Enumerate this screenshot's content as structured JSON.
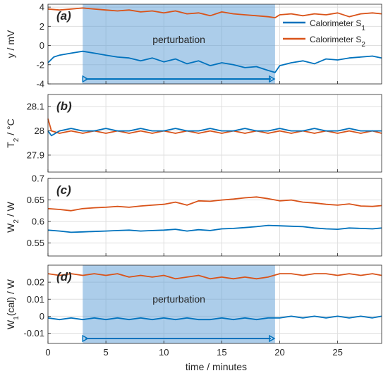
{
  "colors": {
    "s1": "#0072BD",
    "s2": "#D95319",
    "band": "#5A9BD5",
    "grid": "#DFDFDF",
    "axis": "#262626"
  },
  "chart_data": [
    {
      "type": "line",
      "panel_label": "(a)",
      "ylabel": "y / mV",
      "xlim": [
        0,
        28.8
      ],
      "ylim": [
        -4,
        4.3
      ],
      "yticks": [
        -4,
        -2,
        0,
        2,
        4
      ],
      "ytick_labels": [
        "-4",
        "-2",
        "0",
        "2",
        "4"
      ],
      "grid": true,
      "shaded_region": {
        "x": [
          3,
          19.6
        ],
        "label": "perturbation"
      },
      "legend": {
        "placement": "top-right",
        "entries": [
          {
            "base": "Calorimeter S",
            "sub": "1"
          },
          {
            "base": "Calorimeter S",
            "sub": "2"
          }
        ]
      },
      "series": [
        {
          "x": [
            0,
            1,
            2,
            3,
            4,
            5,
            6,
            7,
            8,
            9,
            10,
            11,
            12,
            13,
            14,
            15,
            16,
            17,
            18,
            19,
            19.6,
            20,
            21,
            22,
            23,
            24,
            25,
            26,
            27,
            28,
            28.8
          ],
          "values": [
            3.8,
            3.7,
            3.8,
            3.9,
            3.8,
            3.7,
            3.6,
            3.7,
            3.5,
            3.6,
            3.4,
            3.6,
            3.3,
            3.4,
            3.1,
            3.5,
            3.3,
            3.2,
            3.1,
            3.0,
            2.9,
            3.2,
            3.3,
            3.1,
            3.3,
            3.2,
            3.4,
            3.0,
            3.3,
            3.4,
            3.3
          ]
        },
        {
          "x": [
            0,
            0.5,
            1,
            2,
            3,
            4,
            5,
            6,
            7,
            8,
            9,
            10,
            11,
            12,
            13,
            14,
            15,
            16,
            17,
            18,
            19,
            19.6,
            20,
            21,
            22,
            23,
            24,
            25,
            26,
            27,
            28,
            28.8
          ],
          "values": [
            -1.8,
            -1.2,
            -1.0,
            -0.8,
            -0.6,
            -0.8,
            -1.0,
            -1.2,
            -1.3,
            -1.6,
            -1.3,
            -1.7,
            -1.4,
            -1.9,
            -1.6,
            -2.1,
            -1.8,
            -2.0,
            -2.3,
            -2.2,
            -2.6,
            -2.8,
            -2.1,
            -1.8,
            -1.6,
            -1.9,
            -1.4,
            -1.5,
            -1.3,
            -1.2,
            -1.1,
            -1.3
          ]
        }
      ]
    },
    {
      "type": "line",
      "panel_label": "(b)",
      "ylabel": {
        "base": "T",
        "sub": "2",
        "rest": " / °C"
      },
      "xlim": [
        0,
        28.8
      ],
      "ylim": [
        27.83,
        28.15
      ],
      "yticks": [
        27.9,
        28,
        28.1
      ],
      "ytick_labels": [
        "27.9",
        "28",
        "28.1"
      ],
      "grid": true,
      "series": [
        {
          "x": [
            0,
            0.3,
            1,
            2,
            3,
            4,
            5,
            6,
            7,
            8,
            9,
            10,
            11,
            12,
            13,
            14,
            15,
            16,
            17,
            18,
            19,
            20,
            21,
            22,
            23,
            24,
            25,
            26,
            27,
            28,
            28.8
          ],
          "values": [
            28.05,
            28.0,
            27.99,
            28.0,
            27.99,
            28.0,
            27.99,
            28.0,
            27.99,
            28.0,
            27.99,
            28.0,
            27.99,
            28.0,
            27.99,
            28.0,
            27.99,
            28.0,
            27.99,
            28.0,
            27.99,
            28.0,
            27.99,
            28.0,
            27.99,
            28.0,
            27.99,
            28.0,
            27.99,
            28.0,
            27.99
          ]
        },
        {
          "x": [
            0,
            0.3,
            1,
            2,
            3,
            4,
            5,
            6,
            7,
            8,
            9,
            10,
            11,
            12,
            13,
            14,
            15,
            16,
            17,
            18,
            19,
            20,
            21,
            22,
            23,
            24,
            25,
            26,
            27,
            28,
            28.8
          ],
          "values": [
            28.0,
            27.98,
            28.0,
            28.01,
            28.0,
            28.0,
            28.01,
            28.0,
            28.0,
            28.01,
            28.0,
            28.0,
            28.01,
            28.0,
            28.0,
            28.01,
            28.0,
            28.0,
            28.01,
            28.0,
            28.0,
            28.01,
            28.0,
            28.0,
            28.01,
            28.0,
            28.0,
            28.01,
            28.0,
            28.0,
            28.0
          ]
        }
      ]
    },
    {
      "type": "line",
      "panel_label": "(c)",
      "ylabel": {
        "base": "W",
        "sub": "2",
        "rest": " / W"
      },
      "xlim": [
        0,
        28.8
      ],
      "ylim": [
        0.52,
        0.7
      ],
      "yticks": [
        0.55,
        0.6,
        0.65,
        0.7
      ],
      "ytick_labels": [
        "0.55",
        "0.6",
        "0.65",
        "0.7"
      ],
      "grid": true,
      "series": [
        {
          "x": [
            0,
            1,
            2,
            3,
            4,
            5,
            6,
            7,
            8,
            9,
            10,
            11,
            12,
            13,
            14,
            15,
            16,
            17,
            18,
            19,
            20,
            21,
            22,
            23,
            24,
            25,
            26,
            27,
            28,
            28.8
          ],
          "values": [
            0.63,
            0.628,
            0.625,
            0.63,
            0.632,
            0.633,
            0.635,
            0.633,
            0.636,
            0.638,
            0.64,
            0.645,
            0.638,
            0.648,
            0.647,
            0.65,
            0.652,
            0.655,
            0.657,
            0.653,
            0.648,
            0.65,
            0.645,
            0.643,
            0.64,
            0.638,
            0.641,
            0.636,
            0.635,
            0.637
          ]
        },
        {
          "x": [
            0,
            1,
            2,
            3,
            4,
            5,
            6,
            7,
            8,
            9,
            10,
            11,
            12,
            13,
            14,
            15,
            16,
            17,
            18,
            19,
            20,
            21,
            22,
            23,
            24,
            25,
            26,
            27,
            28,
            28.8
          ],
          "values": [
            0.58,
            0.578,
            0.575,
            0.576,
            0.577,
            0.578,
            0.579,
            0.58,
            0.578,
            0.579,
            0.58,
            0.582,
            0.578,
            0.581,
            0.579,
            0.583,
            0.584,
            0.586,
            0.588,
            0.591,
            0.59,
            0.589,
            0.588,
            0.585,
            0.583,
            0.582,
            0.585,
            0.584,
            0.583,
            0.585
          ]
        }
      ]
    },
    {
      "type": "line",
      "panel_label": "(d)",
      "ylabel": {
        "base": "W",
        "sub": "1",
        "rest": "(cal) / W"
      },
      "xlim": [
        0,
        28.8
      ],
      "ylim": [
        -0.016,
        0.03
      ],
      "yticks": [
        -0.01,
        0,
        0.01,
        0.02
      ],
      "ytick_labels": [
        "-0.01",
        "0",
        "0.01",
        "0.02"
      ],
      "grid": true,
      "shaded_region": {
        "x": [
          3,
          19.6
        ],
        "label": "perturbation"
      },
      "xticks": [
        0,
        5,
        10,
        15,
        20,
        25
      ],
      "xtick_labels": [
        "0",
        "5",
        "10",
        "15",
        "20",
        "25"
      ],
      "xlabel": "time / minutes",
      "series": [
        {
          "x": [
            0,
            1,
            2,
            3,
            4,
            5,
            6,
            7,
            8,
            9,
            10,
            11,
            12,
            13,
            14,
            15,
            16,
            17,
            18,
            19,
            20,
            21,
            22,
            23,
            24,
            25,
            26,
            27,
            28,
            28.8
          ],
          "values": [
            0.025,
            0.024,
            0.025,
            0.024,
            0.025,
            0.024,
            0.025,
            0.023,
            0.024,
            0.023,
            0.024,
            0.022,
            0.023,
            0.024,
            0.022,
            0.023,
            0.022,
            0.023,
            0.022,
            0.023,
            0.025,
            0.025,
            0.024,
            0.025,
            0.025,
            0.024,
            0.025,
            0.024,
            0.025,
            0.024
          ]
        },
        {
          "x": [
            0,
            1,
            2,
            3,
            4,
            5,
            6,
            7,
            8,
            9,
            10,
            11,
            12,
            13,
            14,
            15,
            16,
            17,
            18,
            19,
            20,
            21,
            22,
            23,
            24,
            25,
            26,
            27,
            28,
            28.8
          ],
          "values": [
            -0.001,
            -0.002,
            -0.001,
            -0.002,
            -0.001,
            -0.002,
            -0.001,
            -0.002,
            -0.001,
            -0.002,
            -0.001,
            -0.002,
            -0.001,
            -0.002,
            -0.002,
            -0.001,
            -0.002,
            -0.001,
            -0.002,
            -0.001,
            -0.001,
            0.0,
            -0.001,
            0.0,
            -0.001,
            0.0,
            -0.001,
            0.0,
            -0.001,
            0.0
          ]
        }
      ]
    }
  ]
}
